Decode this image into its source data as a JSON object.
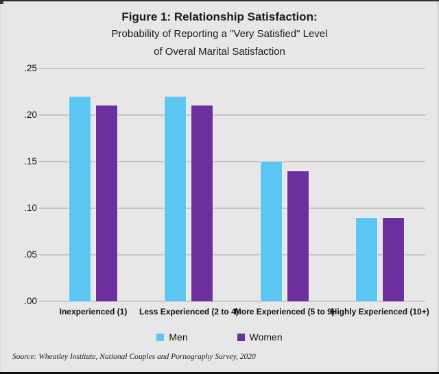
{
  "source_note": "Source: Wheatley Institute, National Couples and Pornography Survey, 2020",
  "colors": {
    "men": "#5BC6F2",
    "women": "#6D2F9E",
    "background": "#e7e7e7",
    "gridline": "#c4c4c4"
  },
  "chart_data": {
    "type": "bar",
    "title": "Figure 1: Relationship Satisfaction:",
    "subtitle_lines": [
      "Probability of Reporting a \"Very Satisfied\" Level",
      "of Overal Marital Satisfaction"
    ],
    "categories": [
      "Inexperienced (1)",
      "Less Experienced (2 to 4)",
      "More Experienced (5 to 9)",
      "Highly Experienced (10+)"
    ],
    "series": [
      {
        "name": "Men",
        "color": "#5BC6F2",
        "values": [
          0.22,
          0.22,
          0.15,
          0.09
        ]
      },
      {
        "name": "Women",
        "color": "#6D2F9E",
        "values": [
          0.21,
          0.21,
          0.14,
          0.09
        ]
      }
    ],
    "xlabel": "",
    "ylabel": "",
    "ylim": [
      0,
      0.25
    ],
    "yticks": [
      {
        "value": 0.0,
        "label": ".00"
      },
      {
        "value": 0.05,
        "label": ".05"
      },
      {
        "value": 0.1,
        "label": ".10"
      },
      {
        "value": 0.15,
        "label": ".15"
      },
      {
        "value": 0.2,
        "label": ".20"
      },
      {
        "value": 0.25,
        "label": ".25"
      }
    ],
    "grid": true,
    "legend_position": "bottom"
  }
}
